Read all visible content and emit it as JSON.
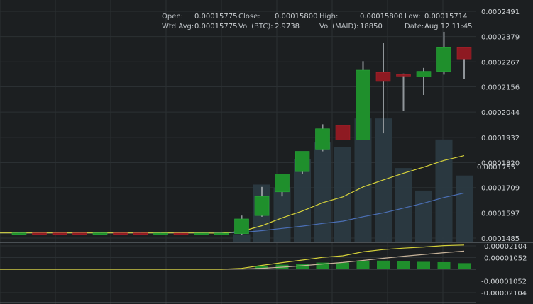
{
  "info": {
    "open_label": "Open:",
    "open_value": "0.00015775",
    "close_label": "Close:",
    "close_value": "0.00015800",
    "high_label": "High:",
    "high_value": "0.00015800",
    "low_label": "Low:",
    "low_value": "0.00015714",
    "wavg_label": "Wtd Avg:",
    "wavg_value": "0.00015775",
    "volbtc_label": "Vol (BTC):",
    "volbtc_value": "2.9738",
    "volmaid_label": "Vol (MAID):",
    "volmaid_value": "18850",
    "date_label": "Date:",
    "date_value": "Aug 12 11:45"
  },
  "colors": {
    "background": "#1c1f21",
    "grid": "#2b3033",
    "up": "#1f8f2c",
    "down": "#8e1a22",
    "volume": "#2b3a42",
    "ema_short": "#d6d23a",
    "ema_long": "#4b6fb5",
    "macd_hist": "#1f8f2c"
  },
  "chart_data": [
    {
      "type": "candlestick",
      "y_ticks": [
        "0.0002491",
        "0.0002379",
        "0.0002267",
        "0.0002156",
        "0.0002044",
        "0.0001932",
        "0.0001820",
        "0.0001709",
        "0.0001597",
        "0.0001485"
      ],
      "y_tick_values": [
        0.0002491,
        0.0002379,
        0.0002267,
        0.0002156,
        0.0002044,
        0.0001932,
        0.000182,
        0.0001709,
        0.0001597,
        0.0001485
      ],
      "ylim": [
        0.0001485,
        0.0002491
      ],
      "current_price_label": "0.0001755",
      "current_price": 0.0001755,
      "candles": [
        {
          "o": 0.0001508,
          "h": 0.000151,
          "l": 0.0001506,
          "c": 0.0001508
        },
        {
          "o": 0.0001508,
          "h": 0.0001509,
          "l": 0.0001505,
          "c": 0.0001506
        },
        {
          "o": 0.0001508,
          "h": 0.0001509,
          "l": 0.0001506,
          "c": 0.0001507
        },
        {
          "o": 0.0001508,
          "h": 0.0001509,
          "l": 0.0001505,
          "c": 0.0001506
        },
        {
          "o": 0.0001506,
          "h": 0.0001509,
          "l": 0.0001504,
          "c": 0.0001508
        },
        {
          "o": 0.0001508,
          "h": 0.0001509,
          "l": 0.0001506,
          "c": 0.0001507
        },
        {
          "o": 0.0001508,
          "h": 0.000151,
          "l": 0.0001506,
          "c": 0.0001506
        },
        {
          "o": 0.0001506,
          "h": 0.0001509,
          "l": 0.0001505,
          "c": 0.0001507
        },
        {
          "o": 0.0001507,
          "h": 0.0001508,
          "l": 0.0001505,
          "c": 0.0001506
        },
        {
          "o": 0.0001506,
          "h": 0.0001508,
          "l": 0.0001505,
          "c": 0.0001507
        },
        {
          "o": 0.0001507,
          "h": 0.0001508,
          "l": 0.0001506,
          "c": 0.0001507
        },
        {
          "o": 0.0001505,
          "h": 0.0001585,
          "l": 0.00015,
          "c": 0.000157
        },
        {
          "o": 0.0001585,
          "h": 0.0001712,
          "l": 0.000158,
          "c": 0.000167
        },
        {
          "o": 0.000169,
          "h": 0.000177,
          "l": 0.000167,
          "c": 0.000177
        },
        {
          "o": 0.000178,
          "h": 0.000186,
          "l": 0.000177,
          "c": 0.000187
        },
        {
          "o": 0.000188,
          "h": 0.000199,
          "l": 0.000187,
          "c": 0.000197
        },
        {
          "o": 0.0001985,
          "h": 0.0001985,
          "l": 0.000192,
          "c": 0.000192
        },
        {
          "o": 0.000192,
          "h": 0.000227,
          "l": 0.000192,
          "c": 0.000223
        },
        {
          "o": 0.000222,
          "h": 0.000235,
          "l": 0.000195,
          "c": 0.000218
        },
        {
          "o": 0.000221,
          "h": 0.0002215,
          "l": 0.000205,
          "c": 0.0002205
        },
        {
          "o": 0.00022,
          "h": 0.000224,
          "l": 0.000212,
          "c": 0.0002225
        },
        {
          "o": 0.0002225,
          "h": 0.00024,
          "l": 0.000221,
          "c": 0.000233
        },
        {
          "o": 0.000233,
          "h": 0.000233,
          "l": 0.000219,
          "c": 0.000228
        }
      ],
      "volumes": [
        0,
        0,
        0,
        0,
        0,
        0,
        0,
        0,
        0,
        0,
        0,
        0.05,
        0.38,
        0.36,
        0.55,
        0.66,
        0.63,
        0.82,
        0.82,
        0.49,
        0.34,
        0.68,
        0.44
      ],
      "ema_short": [
        0.0001508,
        0.0001508,
        0.0001508,
        0.0001508,
        0.0001508,
        0.0001508,
        0.0001508,
        0.0001508,
        0.0001508,
        0.0001508,
        0.0001507,
        0.0001515,
        0.000154,
        0.0001575,
        0.0001605,
        0.0001642,
        0.0001668,
        0.0001712,
        0.0001743,
        0.0001773,
        0.00018,
        0.000183,
        0.0001851
      ],
      "ema_long": [
        0.0001508,
        0.0001508,
        0.0001508,
        0.0001508,
        0.0001508,
        0.0001508,
        0.0001508,
        0.0001508,
        0.0001508,
        0.0001508,
        0.0001508,
        0.000151,
        0.0001518,
        0.0001528,
        0.0001538,
        0.000155,
        0.000156,
        0.000158,
        0.0001597,
        0.0001618,
        0.000164,
        0.0001665,
        0.0001685
      ]
    },
    {
      "type": "macd",
      "y_ticks": [
        "0.00002104",
        "0.00001052",
        "-0.00001052",
        "-0.00002104"
      ],
      "y_tick_values": [
        2.104e-05,
        1.052e-05,
        -1.052e-05,
        -2.104e-05
      ],
      "ylim": [
        -2.104e-05,
        2.104e-05
      ],
      "macd": [
        0,
        0,
        0,
        0,
        0,
        0,
        0,
        0,
        0,
        0,
        0,
        8e-07,
        3.5e-06,
        6e-06,
        8.3e-06,
        1.07e-05,
        1.21e-05,
        1.57e-05,
        1.77e-05,
        1.9e-05,
        2e-05,
        2.13e-05,
        2.18e-05
      ],
      "signal": [
        0,
        0,
        0,
        0,
        0,
        0,
        0,
        0,
        0,
        0,
        0,
        2e-07,
        9e-07,
        1.9e-06,
        3.2e-06,
        4.7e-06,
        6.1e-06,
        8e-06,
        9.9e-06,
        1.17e-05,
        1.33e-05,
        1.49e-05,
        1.63e-05
      ],
      "histogram": [
        0,
        0,
        0,
        0,
        0,
        0,
        0,
        0,
        0,
        0,
        0,
        6e-07,
        2.6e-06,
        4.1e-06,
        5.1e-06,
        6e-06,
        6e-06,
        7.7e-06,
        7.8e-06,
        7.3e-06,
        6.7e-06,
        6.4e-06,
        5.5e-06
      ]
    }
  ]
}
